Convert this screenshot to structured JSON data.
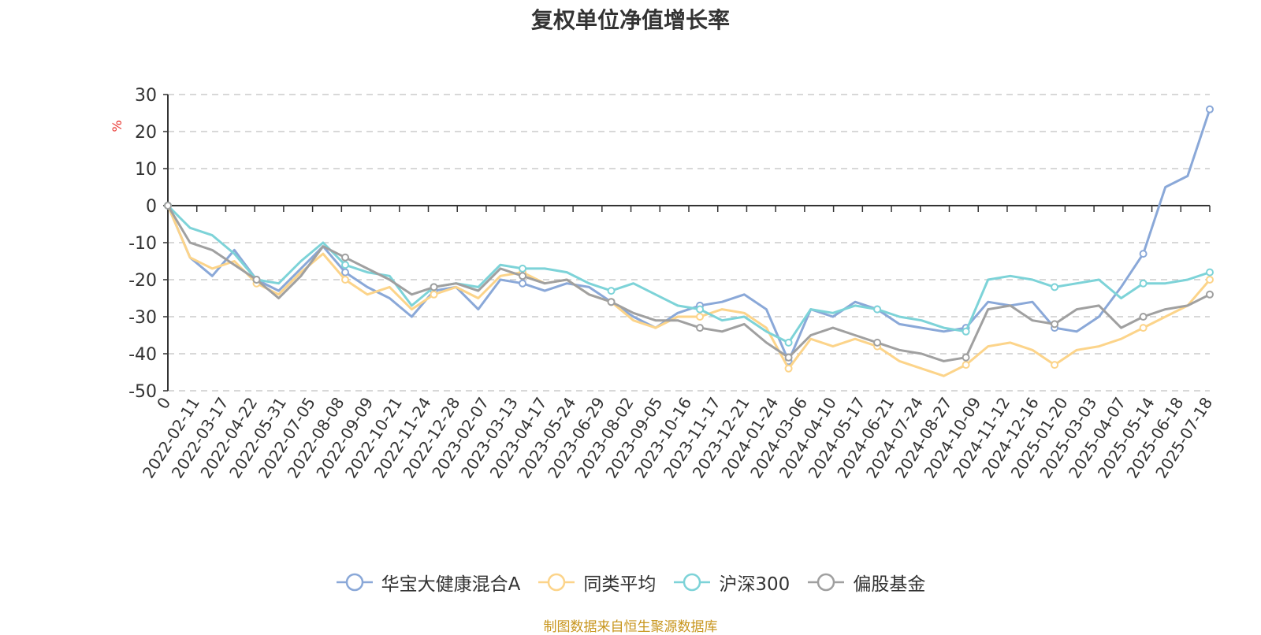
{
  "chart_data": {
    "type": "line",
    "title": "复权单位净值增长率",
    "ylabel": "%",
    "xlabel": "",
    "ylim": [
      -50,
      30
    ],
    "yticks": [
      30,
      20,
      10,
      0,
      -10,
      -20,
      -30,
      -40,
      -50
    ],
    "xticks": [
      "0",
      "2022-02-11",
      "2022-03-17",
      "2022-04-22",
      "2022-05-31",
      "2022-07-05",
      "2022-08-08",
      "2022-09-09",
      "2022-10-21",
      "2022-11-24",
      "2022-12-28",
      "2023-02-07",
      "2023-03-13",
      "2023-04-17",
      "2023-05-24",
      "2023-06-29",
      "2023-08-02",
      "2023-09-05",
      "2023-10-16",
      "2023-11-17",
      "2023-12-21",
      "2024-01-24",
      "2024-03-06",
      "2024-04-10",
      "2024-05-17",
      "2024-06-21",
      "2024-07-24",
      "2024-08-27",
      "2024-10-09",
      "2024-11-12",
      "2024-12-16",
      "2025-01-20",
      "2025-03-03",
      "2025-04-07",
      "2025-05-14",
      "2025-06-18",
      "2025-07-18"
    ],
    "grid": true,
    "legend_position": "bottom",
    "series": [
      {
        "name": "华宝大健康混合A",
        "color": "#8aa8d8",
        "values": [
          0,
          -14,
          -19,
          -12,
          -20,
          -23,
          -17,
          -11,
          -18,
          -22,
          -25,
          -30,
          -23,
          -22,
          -28,
          -20,
          -21,
          -23,
          -21,
          -22,
          -26,
          -30,
          -33,
          -29,
          -27,
          -26,
          -24,
          -28,
          -42,
          -28,
          -30,
          -26,
          -28,
          -32,
          -33,
          -34,
          -33,
          -26,
          -27,
          -26,
          -33,
          -34,
          -30,
          -22,
          -13,
          5,
          8,
          26
        ]
      },
      {
        "name": "同类平均",
        "color": "#fcd48a",
        "values": [
          0,
          -14,
          -17,
          -15,
          -21,
          -24,
          -18,
          -13,
          -20,
          -24,
          -22,
          -28,
          -24,
          -22,
          -25,
          -19,
          -18,
          -21,
          -20,
          -24,
          -26,
          -31,
          -33,
          -30,
          -30,
          -28,
          -29,
          -33,
          -44,
          -36,
          -38,
          -36,
          -38,
          -42,
          -44,
          -46,
          -43,
          -38,
          -37,
          -39,
          -43,
          -39,
          -38,
          -36,
          -33,
          -30,
          -27,
          -20
        ]
      },
      {
        "name": "沪深300",
        "color": "#7dd3d8",
        "values": [
          0,
          -6,
          -8,
          -13,
          -20,
          -21,
          -15,
          -10,
          -16,
          -18,
          -19,
          -27,
          -22,
          -21,
          -22,
          -16,
          -17,
          -17,
          -18,
          -21,
          -23,
          -21,
          -24,
          -27,
          -28,
          -31,
          -30,
          -34,
          -37,
          -28,
          -29,
          -27,
          -28,
          -30,
          -31,
          -33,
          -34,
          -20,
          -19,
          -20,
          -22,
          -21,
          -20,
          -25,
          -21,
          -21,
          -20,
          -18
        ]
      },
      {
        "name": "偏股基金",
        "color": "#a0a0a0",
        "values": [
          0,
          -10,
          -12,
          -16,
          -20,
          -25,
          -19,
          -11,
          -14,
          -17,
          -20,
          -24,
          -22,
          -21,
          -23,
          -17,
          -19,
          -21,
          -20,
          -24,
          -26,
          -29,
          -31,
          -31,
          -33,
          -34,
          -32,
          -37,
          -41,
          -35,
          -33,
          -35,
          -37,
          -39,
          -40,
          -42,
          -41,
          -28,
          -27,
          -31,
          -32,
          -28,
          -27,
          -33,
          -30,
          -28,
          -27,
          -24
        ]
      }
    ]
  },
  "source_note": "制图数据来自恒生聚源数据库"
}
